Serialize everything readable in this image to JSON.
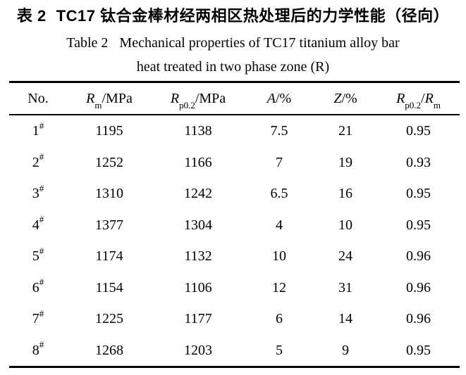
{
  "titles": {
    "zh_prefix": "表 2",
    "zh_text": "TC17 钛合金棒材经两相区热处理后的力学性能（径向）",
    "en_prefix": "Table 2",
    "en_line1": "Mechanical properties of TC17 titanium alloy bar",
    "en_line2": "heat treated in two phase zone (R)"
  },
  "table": {
    "columns": [
      {
        "text": "No."
      },
      {
        "base": "R",
        "sub": "m",
        "rest": "/MPa"
      },
      {
        "base": "R",
        "sub": "p0.2",
        "rest": "/MPa"
      },
      {
        "base": "A",
        "rest": "/%"
      },
      {
        "base": "Z",
        "rest": "/%"
      },
      {
        "base": "R",
        "sub": "p0.2",
        "mid": "/",
        "base2": "R",
        "sub2": "m"
      }
    ],
    "rows": [
      {
        "no": "1",
        "mark": "#",
        "rm": "1195",
        "rp02": "1138",
        "a": "7.5",
        "z": "21",
        "ratio": "0.95"
      },
      {
        "no": "2",
        "mark": "#",
        "rm": "1252",
        "rp02": "1166",
        "a": "7",
        "z": "19",
        "ratio": "0.93"
      },
      {
        "no": "3",
        "mark": "#",
        "rm": "1310",
        "rp02": "1242",
        "a": "6.5",
        "z": "16",
        "ratio": "0.95"
      },
      {
        "no": "4",
        "mark": "#",
        "rm": "1377",
        "rp02": "1304",
        "a": "4",
        "z": "10",
        "ratio": "0.95"
      },
      {
        "no": "5",
        "mark": "#",
        "rm": "1174",
        "rp02": "1132",
        "a": "10",
        "z": "24",
        "ratio": "0.96"
      },
      {
        "no": "6",
        "mark": "#",
        "rm": "1154",
        "rp02": "1106",
        "a": "12",
        "z": "31",
        "ratio": "0.96"
      },
      {
        "no": "7",
        "mark": "#",
        "rm": "1225",
        "rp02": "1177",
        "a": "6",
        "z": "14",
        "ratio": "0.96"
      },
      {
        "no": "8",
        "mark": "#",
        "rm": "1268",
        "rp02": "1203",
        "a": "5",
        "z": "9",
        "ratio": "0.95"
      }
    ]
  },
  "colors": {
    "text": "#000000",
    "background": "#ffffff",
    "rule": "#000000"
  }
}
